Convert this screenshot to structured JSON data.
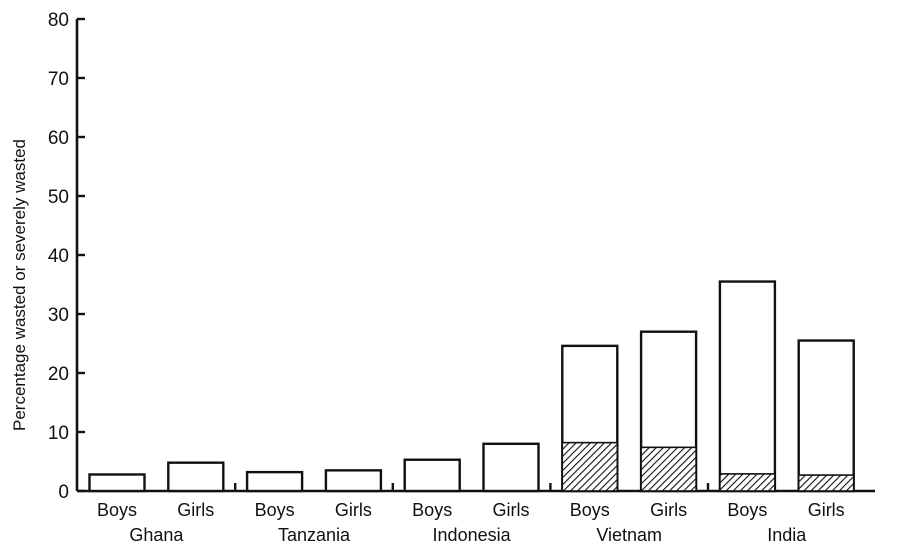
{
  "chart_data": {
    "type": "bar",
    "stacked": true,
    "title": "",
    "xlabel": "",
    "ylabel": "Percentage wasted or severely wasted",
    "ylim": [
      0,
      80
    ],
    "yticks": [
      0,
      10,
      20,
      30,
      40,
      50,
      60,
      70,
      80
    ],
    "grid": false,
    "legend": "none",
    "groups": [
      "Ghana",
      "Tanzania",
      "Indonesia",
      "Vietnam",
      "India"
    ],
    "categories": [
      "Boys",
      "Girls",
      "Boys",
      "Girls",
      "Boys",
      "Girls",
      "Boys",
      "Girls",
      "Boys",
      "Girls"
    ],
    "series": [
      {
        "values": [
          2.8,
          4.8,
          3.2,
          3.5,
          5.3,
          8.0,
          24.6,
          27.0,
          35.5,
          25.5
        ]
      },
      {
        "values": [
          0,
          0,
          0,
          0,
          0,
          0,
          8.2,
          7.4,
          2.9,
          2.7
        ]
      }
    ]
  }
}
